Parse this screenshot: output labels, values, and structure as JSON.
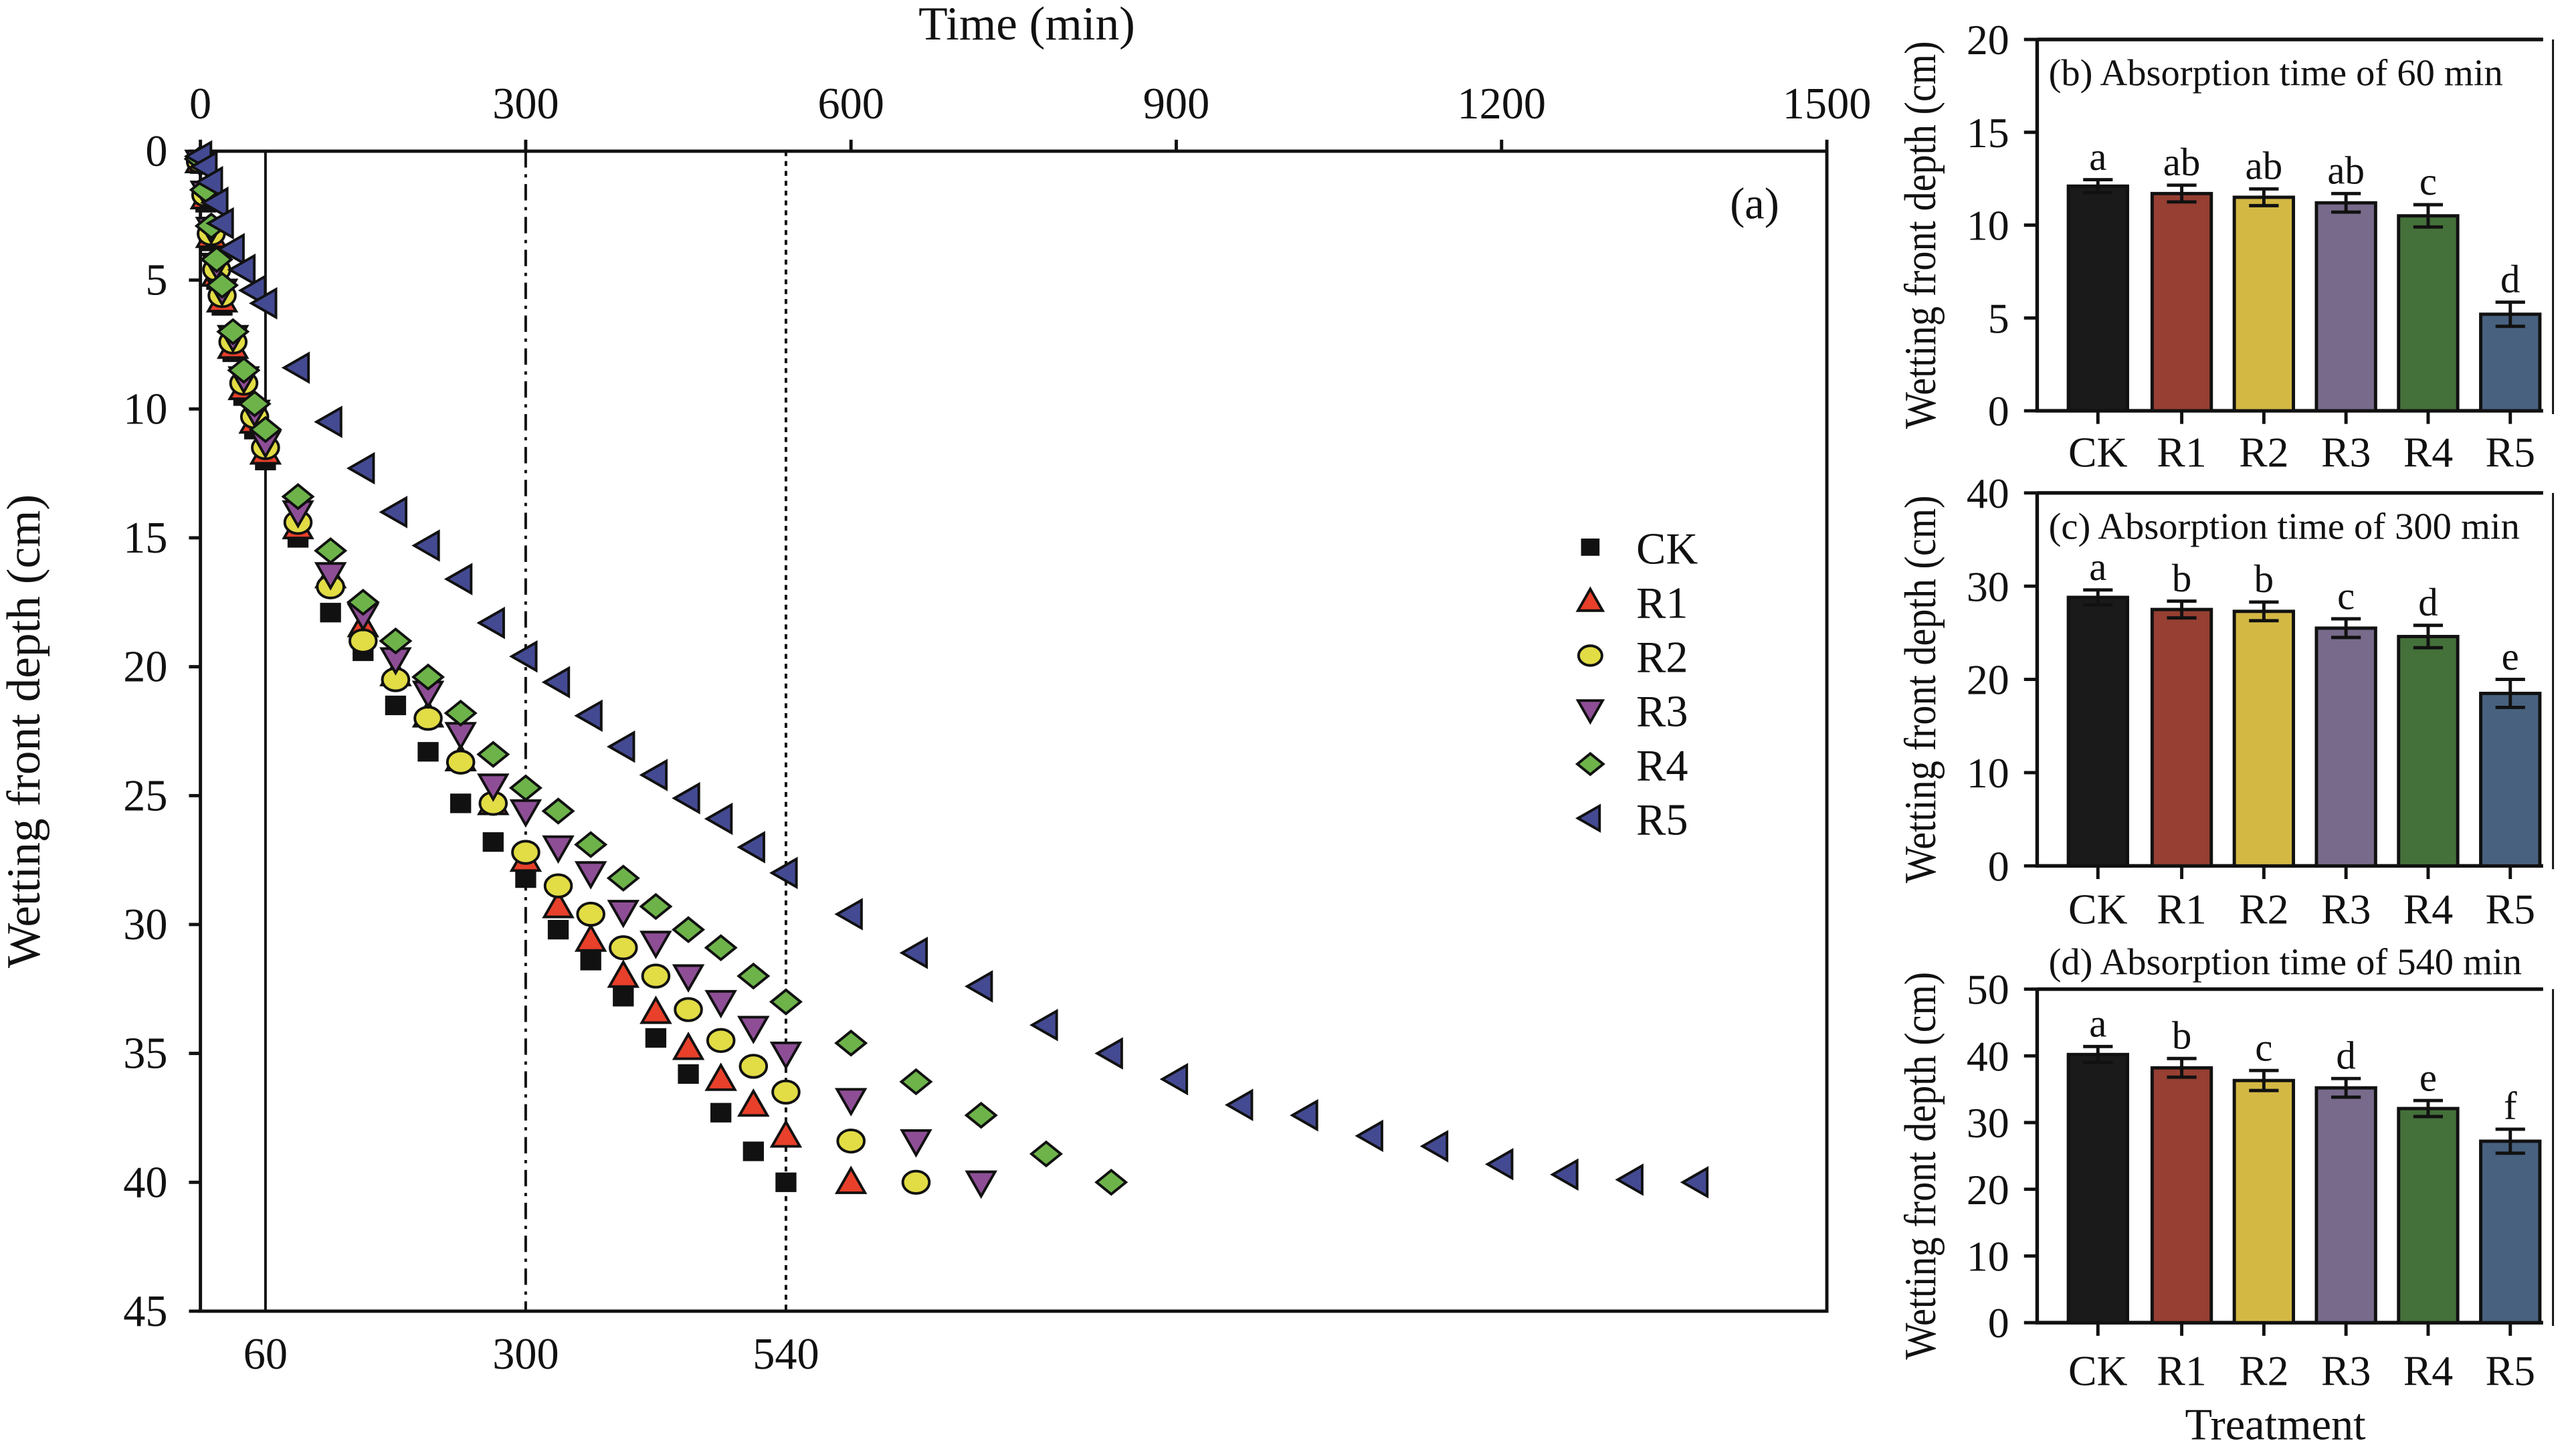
{
  "chart_data": [
    {
      "type": "scatter",
      "panel_label": "(a)",
      "xlabel": "Time (min)",
      "ylabel": "Wetting front depth (cm)",
      "xlim": [
        0,
        1500
      ],
      "ylim": [
        0,
        45
      ],
      "y_inverted": true,
      "x_axis_position": "top",
      "x_ticks": [
        "0",
        "300",
        "600",
        "900",
        "1200",
        "1500"
      ],
      "y_ticks": [
        "0",
        "5",
        "10",
        "15",
        "20",
        "25",
        "30",
        "35",
        "40",
        "45"
      ],
      "bottom_labels": [
        "60",
        "300",
        "540"
      ],
      "reference_lines": [
        {
          "x": 60,
          "style": "solid"
        },
        {
          "x": 300,
          "style": "dash-dot"
        },
        {
          "x": 540,
          "style": "dotted"
        }
      ],
      "legend_position": "right",
      "series": [
        {
          "name": "CK",
          "marker": "square",
          "color": "#111111",
          "x": [
            0,
            5,
            10,
            15,
            20,
            30,
            40,
            50,
            60,
            90,
            120,
            150,
            180,
            210,
            240,
            270,
            300,
            330,
            360,
            390,
            420,
            450,
            480,
            510,
            540
          ],
          "y": [
            0.5,
            2,
            3.5,
            5,
            6,
            7.8,
            9.5,
            10.8,
            12.0,
            15.0,
            17.9,
            19.4,
            21.5,
            23.3,
            25.3,
            26.8,
            28.2,
            30.2,
            31.4,
            32.8,
            34.4,
            35.8,
            37.3,
            38.8,
            40.0
          ]
        },
        {
          "name": "R1",
          "marker": "triangle-up",
          "color": "#e8402a",
          "x": [
            0,
            5,
            10,
            15,
            20,
            30,
            40,
            50,
            60,
            90,
            120,
            150,
            180,
            210,
            240,
            270,
            300,
            330,
            360,
            390,
            420,
            450,
            480,
            510,
            540,
            600
          ],
          "y": [
            0.4,
            1.8,
            3.3,
            4.8,
            5.8,
            7.6,
            9.2,
            10.5,
            11.7,
            14.6,
            16.5,
            18.4,
            20.3,
            21.9,
            23.6,
            25.3,
            27.5,
            29.3,
            30.6,
            32.0,
            33.4,
            34.8,
            36.0,
            37.0,
            38.2,
            40.0
          ]
        },
        {
          "name": "R2",
          "marker": "circle",
          "color": "#e2dc45",
          "x": [
            0,
            5,
            10,
            15,
            20,
            30,
            40,
            50,
            60,
            90,
            120,
            150,
            180,
            210,
            240,
            270,
            300,
            330,
            360,
            390,
            420,
            450,
            480,
            510,
            540,
            600,
            660
          ],
          "y": [
            0.4,
            1.7,
            3.2,
            4.6,
            5.6,
            7.4,
            9.0,
            10.3,
            11.5,
            14.4,
            16.9,
            19.0,
            20.5,
            22.0,
            23.7,
            25.3,
            27.2,
            28.5,
            29.6,
            30.9,
            32.0,
            33.3,
            34.5,
            35.5,
            36.5,
            38.4,
            40.0
          ]
        },
        {
          "name": "R3",
          "marker": "triangle-down",
          "color": "#8e4e96",
          "x": [
            0,
            5,
            10,
            15,
            20,
            30,
            40,
            50,
            60,
            90,
            120,
            150,
            180,
            210,
            240,
            270,
            300,
            330,
            360,
            390,
            420,
            450,
            480,
            510,
            540,
            600,
            660,
            720
          ],
          "y": [
            0.4,
            1.6,
            3.0,
            4.4,
            5.4,
            7.2,
            8.8,
            10.1,
            11.3,
            14.0,
            16.4,
            18.0,
            19.7,
            21.0,
            22.6,
            24.6,
            25.6,
            27.0,
            28.0,
            29.5,
            30.7,
            32.0,
            33.0,
            34.0,
            35.0,
            36.8,
            38.4,
            40.0
          ]
        },
        {
          "name": "R4",
          "marker": "diamond",
          "color": "#6db34a",
          "x": [
            0,
            5,
            10,
            15,
            20,
            30,
            40,
            50,
            60,
            90,
            120,
            150,
            180,
            210,
            240,
            270,
            300,
            330,
            360,
            390,
            420,
            450,
            480,
            510,
            540,
            600,
            660,
            720,
            780,
            840
          ],
          "y": [
            0.3,
            1.5,
            2.9,
            4.2,
            5.2,
            7.0,
            8.5,
            9.8,
            10.8,
            13.4,
            15.5,
            17.5,
            19.0,
            20.4,
            21.8,
            23.4,
            24.7,
            25.6,
            26.9,
            28.2,
            29.3,
            30.2,
            30.9,
            32.0,
            33.0,
            34.6,
            36.1,
            37.4,
            38.9,
            40.0
          ]
        },
        {
          "name": "R5",
          "marker": "triangle-left",
          "color": "#444a92",
          "x": [
            0,
            5,
            10,
            15,
            20,
            30,
            40,
            50,
            60,
            90,
            120,
            150,
            180,
            210,
            240,
            270,
            300,
            330,
            360,
            390,
            420,
            450,
            480,
            510,
            540,
            600,
            660,
            720,
            780,
            840,
            900,
            960,
            1020,
            1080,
            1140,
            1200,
            1260,
            1320,
            1380
          ],
          "y": [
            0.2,
            0.6,
            1.2,
            2.0,
            2.8,
            3.8,
            4.6,
            5.4,
            5.9,
            8.4,
            10.5,
            12.3,
            14.0,
            15.3,
            16.6,
            18.3,
            19.6,
            20.6,
            21.9,
            23.1,
            24.2,
            25.1,
            25.9,
            27.0,
            28.0,
            29.6,
            31.1,
            32.4,
            33.9,
            35.0,
            36.0,
            37.0,
            37.4,
            38.2,
            38.6,
            39.3,
            39.7,
            39.9,
            40.0
          ]
        }
      ]
    },
    {
      "type": "bar",
      "title": "(b) Absorption time of 60 min",
      "ylabel": "Wetting front depth (cm)",
      "ylim": [
        0,
        20
      ],
      "y_ticks": [
        "0",
        "5",
        "10",
        "15",
        "20"
      ],
      "categories": [
        "CK",
        "R1",
        "R2",
        "R3",
        "R4",
        "R5"
      ],
      "values": [
        12.1,
        11.7,
        11.5,
        11.2,
        10.5,
        5.2
      ],
      "errors": [
        0.35,
        0.45,
        0.45,
        0.5,
        0.6,
        0.65
      ],
      "letters": [
        "a",
        "ab",
        "ab",
        "ab",
        "c",
        "d"
      ],
      "colors": [
        "#1a1a1a",
        "#963f32",
        "#d4b844",
        "#776a8b",
        "#44703a",
        "#48617f"
      ]
    },
    {
      "type": "bar",
      "title": "(c) Absorption time of 300 min",
      "ylabel": "Wetting front depth (cm)",
      "ylim": [
        0,
        40
      ],
      "y_ticks": [
        "0",
        "10",
        "20",
        "30",
        "40"
      ],
      "categories": [
        "CK",
        "R1",
        "R2",
        "R3",
        "R4",
        "R5"
      ],
      "values": [
        28.8,
        27.5,
        27.3,
        25.5,
        24.6,
        18.5
      ],
      "errors": [
        0.8,
        0.9,
        1.0,
        1.0,
        1.2,
        1.5
      ],
      "letters": [
        "a",
        "b",
        "b",
        "c",
        "d",
        "e"
      ],
      "colors": [
        "#1a1a1a",
        "#963f32",
        "#d4b844",
        "#776a8b",
        "#44703a",
        "#48617f"
      ]
    },
    {
      "type": "bar",
      "title": "(d) Absorption time of 540 min",
      "ylabel": "Wetting front depth (cm)",
      "xlabel": "Treatment",
      "ylim": [
        0,
        50
      ],
      "y_ticks": [
        "0",
        "10",
        "20",
        "30",
        "40",
        "50"
      ],
      "categories": [
        "CK",
        "R1",
        "R2",
        "R3",
        "R4",
        "R5"
      ],
      "values": [
        40.2,
        38.2,
        36.3,
        35.2,
        32.1,
        27.2
      ],
      "errors": [
        1.2,
        1.4,
        1.5,
        1.4,
        1.2,
        1.8
      ],
      "letters": [
        "a",
        "b",
        "c",
        "d",
        "e",
        "f"
      ],
      "colors": [
        "#1a1a1a",
        "#963f32",
        "#d4b844",
        "#776a8b",
        "#44703a",
        "#48617f"
      ]
    }
  ]
}
